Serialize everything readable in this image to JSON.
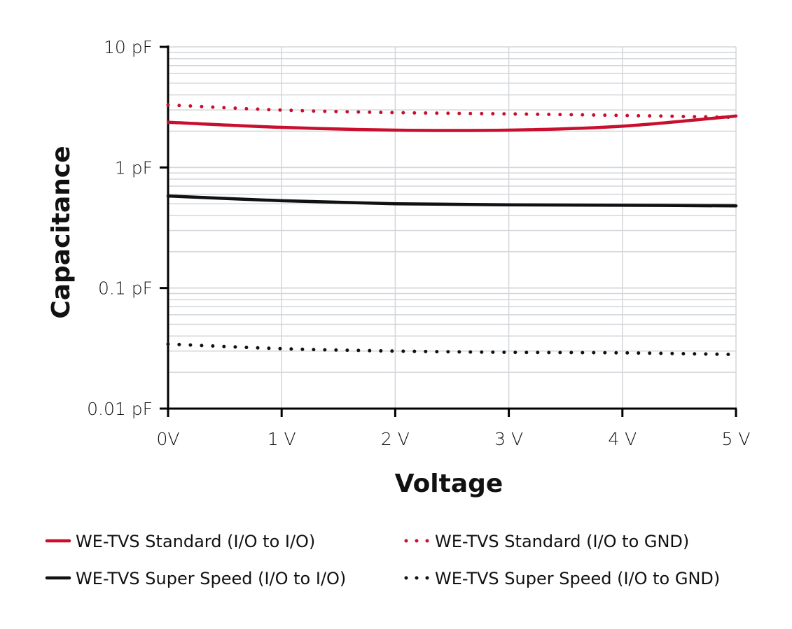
{
  "chart_data": {
    "type": "line",
    "title": "",
    "xlabel": "Voltage",
    "ylabel": "Capacitance",
    "x_scale": "linear",
    "y_scale": "log",
    "xlim": [
      0,
      5
    ],
    "ylim": [
      0.01,
      10
    ],
    "grid": true,
    "legend_placement": "bottom",
    "x_ticks": [
      0,
      1,
      2,
      3,
      4,
      5
    ],
    "x_tick_labels": [
      "0V",
      "1 V",
      "2 V",
      "3 V",
      "4 V",
      "5 V"
    ],
    "y_ticks": [
      10,
      1,
      0.1,
      0.01
    ],
    "y_tick_labels": [
      "10 pF",
      "1 pF",
      "0.1 pF",
      "0.01 pF"
    ],
    "x": [
      0,
      1,
      2,
      3,
      4,
      5
    ],
    "series": [
      {
        "name": "WE-TVS Standard (I/O to I/O)",
        "color": "#c8102e",
        "style": "solid",
        "values": [
          2.37,
          2.15,
          2.04,
          2.04,
          2.2,
          2.67
        ]
      },
      {
        "name": "WE-TVS Standard (I/O to GND)",
        "color": "#c8102e",
        "style": "dotted",
        "values": [
          3.3,
          2.99,
          2.85,
          2.78,
          2.7,
          2.6
        ]
      },
      {
        "name": "WE-TVS Super Speed (I/O to I/O)",
        "color": "#111111",
        "style": "solid",
        "values": [
          0.58,
          0.53,
          0.5,
          0.49,
          0.486,
          0.48
        ]
      },
      {
        "name": "WE-TVS Super Speed (I/O to GND)",
        "color": "#111111",
        "style": "dotted",
        "values": [
          0.0343,
          0.0314,
          0.03,
          0.0293,
          0.029,
          0.0281
        ]
      }
    ]
  }
}
